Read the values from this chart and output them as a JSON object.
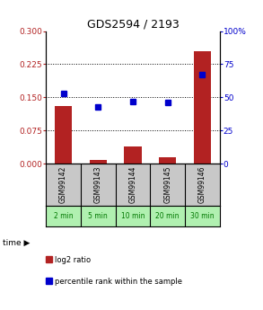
{
  "title": "GDS2594 / 2193",
  "samples": [
    "GSM99142",
    "GSM99143",
    "GSM99144",
    "GSM99145",
    "GSM99146"
  ],
  "time_labels": [
    "2 min",
    "5 min",
    "10 min",
    "20 min",
    "30 min"
  ],
  "log2_ratio": [
    0.13,
    0.008,
    0.04,
    0.015,
    0.255
  ],
  "percentile_rank": [
    53,
    43,
    47,
    46,
    67
  ],
  "bar_color": "#b22222",
  "dot_color": "#0000cc",
  "left_ylim": [
    0,
    0.3
  ],
  "right_ylim": [
    0,
    100
  ],
  "left_yticks": [
    0,
    0.075,
    0.15,
    0.225,
    0.3
  ],
  "right_yticks": [
    0,
    25,
    50,
    75,
    100
  ],
  "right_yticklabels": [
    "0",
    "25",
    "50",
    "75",
    "100%"
  ],
  "hlines": [
    0.075,
    0.15,
    0.225
  ],
  "sample_bg_color": "#c8c8c8",
  "time_bg_color": "#b0f0b0",
  "time_label_color": "#007700",
  "legend_bar_label": "log2 ratio",
  "legend_dot_label": "percentile rank within the sample",
  "title_fontsize": 9,
  "tick_fontsize": 6.5,
  "bar_width": 0.5
}
